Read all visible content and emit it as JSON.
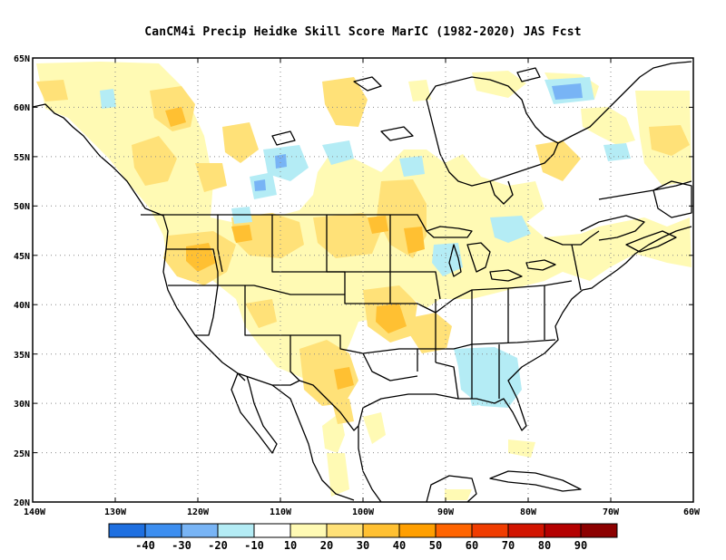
{
  "title": "CanCM4i Precip Heidke Skill Score MarIC (1982-2020) JAS Fcst",
  "map": {
    "lon_range": [
      -140,
      -60
    ],
    "lat_range": [
      20,
      65
    ],
    "lat_labels": [
      "65N",
      "60N",
      "55N",
      "50N",
      "45N",
      "40N",
      "35N",
      "30N",
      "25N",
      "20N"
    ],
    "lon_labels": [
      "140W",
      "130W",
      "120W",
      "110W",
      "100W",
      "90W",
      "80W",
      "70W",
      "60W"
    ],
    "gridlines": "dotted"
  },
  "colorbar": {
    "labels": [
      "-40",
      "-30",
      "-20",
      "-10",
      "10",
      "20",
      "30",
      "40",
      "50",
      "60",
      "70",
      "80",
      "90"
    ],
    "colors": [
      "#1e6fe0",
      "#3c8ef0",
      "#78b4f5",
      "#b4ecf5",
      "#ffffff",
      "#fffab4",
      "#ffe178",
      "#ffc032",
      "#ff9f00",
      "#ff6400",
      "#f03c00",
      "#d21400",
      "#b40000",
      "#8c0000"
    ]
  }
}
